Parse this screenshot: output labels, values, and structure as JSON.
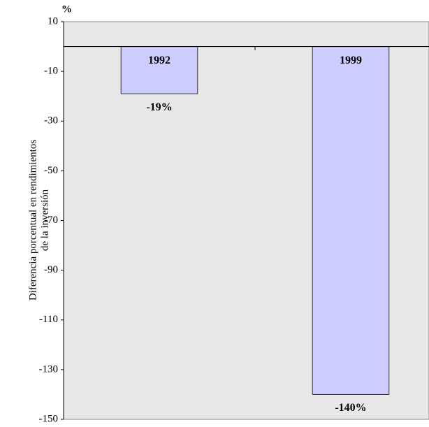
{
  "chart_data": {
    "type": "bar",
    "y_unit": "%",
    "ylabel": [
      "Diferencia porcentual en rendimientos",
      "de la inversión"
    ],
    "categories": [
      "1992",
      "1999"
    ],
    "values": [
      -19,
      -140
    ],
    "value_labels": [
      "-19%",
      "-140%"
    ],
    "color": "#ccccff",
    "ylim": [
      -150,
      10
    ],
    "yticks": [
      10,
      -10,
      -30,
      -50,
      -70,
      -90,
      -110,
      -130,
      -150
    ]
  }
}
